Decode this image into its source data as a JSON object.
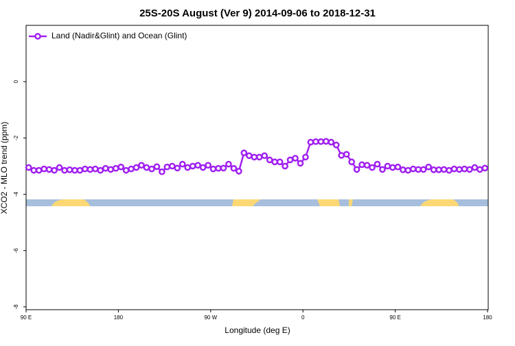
{
  "chart_data": {
    "type": "line",
    "title": "25S-20S August (Ver 9)   2014-09-06 to 2018-12-31",
    "x_label": "Longitude (deg E)",
    "y_label": "XCO2 - MLO trend (ppm)",
    "x": [
      92.5,
      97.5,
      102.5,
      107.5,
      112.5,
      117.5,
      122.5,
      127.5,
      132.5,
      137.5,
      142.5,
      147.5,
      152.5,
      157.5,
      162.5,
      167.5,
      172.5,
      177.5,
      182.5,
      187.5,
      192.5,
      197.5,
      202.5,
      207.5,
      212.5,
      217.5,
      222.5,
      227.5,
      232.5,
      237.5,
      242.5,
      247.5,
      252.5,
      257.5,
      262.5,
      267.5,
      272.5,
      277.5,
      282.5,
      287.5,
      292.5,
      297.5,
      302.5,
      307.5,
      312.5,
      317.5,
      322.5,
      327.5,
      332.5,
      337.5,
      342.5,
      347.5,
      352.5,
      357.5,
      362.5,
      367.5,
      372.5,
      377.5,
      382.5,
      387.5,
      392.5,
      397.5,
      402.5,
      407.5,
      412.5,
      417.5,
      422.5,
      427.5,
      432.5,
      437.5,
      442.5,
      447.5,
      452.5,
      457.5,
      462.5,
      467.5,
      472.5,
      477.5,
      482.5,
      487.5,
      492.5,
      497.5,
      502.5,
      507.5,
      512.5,
      517.5,
      522.5,
      527.5,
      532.5,
      537.5
    ],
    "series": [
      {
        "name": "Land (Nadir&Glint) and Ocean (Glint)",
        "color": "#a020f0",
        "values": [
          -3.05,
          -3.15,
          -3.15,
          -3.1,
          -3.12,
          -3.15,
          -3.05,
          -3.15,
          -3.13,
          -3.15,
          -3.15,
          -3.1,
          -3.12,
          -3.1,
          -3.15,
          -3.08,
          -3.12,
          -3.08,
          -3.03,
          -3.15,
          -3.1,
          -3.05,
          -2.97,
          -3.05,
          -3.1,
          -3.02,
          -3.2,
          -3.03,
          -3.0,
          -3.07,
          -2.93,
          -3.05,
          -3.0,
          -2.97,
          -3.05,
          -2.97,
          -3.1,
          -3.08,
          -3.07,
          -2.93,
          -3.08,
          -3.18,
          -2.53,
          -2.63,
          -2.68,
          -2.68,
          -2.63,
          -2.78,
          -2.85,
          -2.85,
          -3.0,
          -2.78,
          -2.72,
          -2.9,
          -2.68,
          -2.15,
          -2.13,
          -2.13,
          -2.12,
          -2.15,
          -2.25,
          -2.62,
          -2.58,
          -2.85,
          -3.12,
          -2.95,
          -2.97,
          -3.05,
          -2.93,
          -3.12,
          -3.0,
          -3.05,
          -3.03,
          -3.13,
          -3.15,
          -3.1,
          -3.12,
          -3.12,
          -3.03,
          -3.13,
          -3.13,
          -3.12,
          -3.15,
          -3.1,
          -3.12,
          -3.1,
          -3.12,
          -3.05,
          -3.12,
          -3.07
        ]
      }
    ],
    "xlim": [
      90,
      540
    ],
    "xticks": [
      {
        "value": 90,
        "label": "90 E"
      },
      180,
      {
        "value": 270,
        "label": "90 W"
      },
      0,
      {
        "value": 450,
        "label": "90 E"
      },
      {
        "value": 540,
        "label": "180"
      }
    ],
    "ylim": [
      -8.1,
      2.0
    ],
    "yticks": [
      0,
      -2,
      -4,
      -6,
      -8
    ],
    "legend": "top-left"
  }
}
